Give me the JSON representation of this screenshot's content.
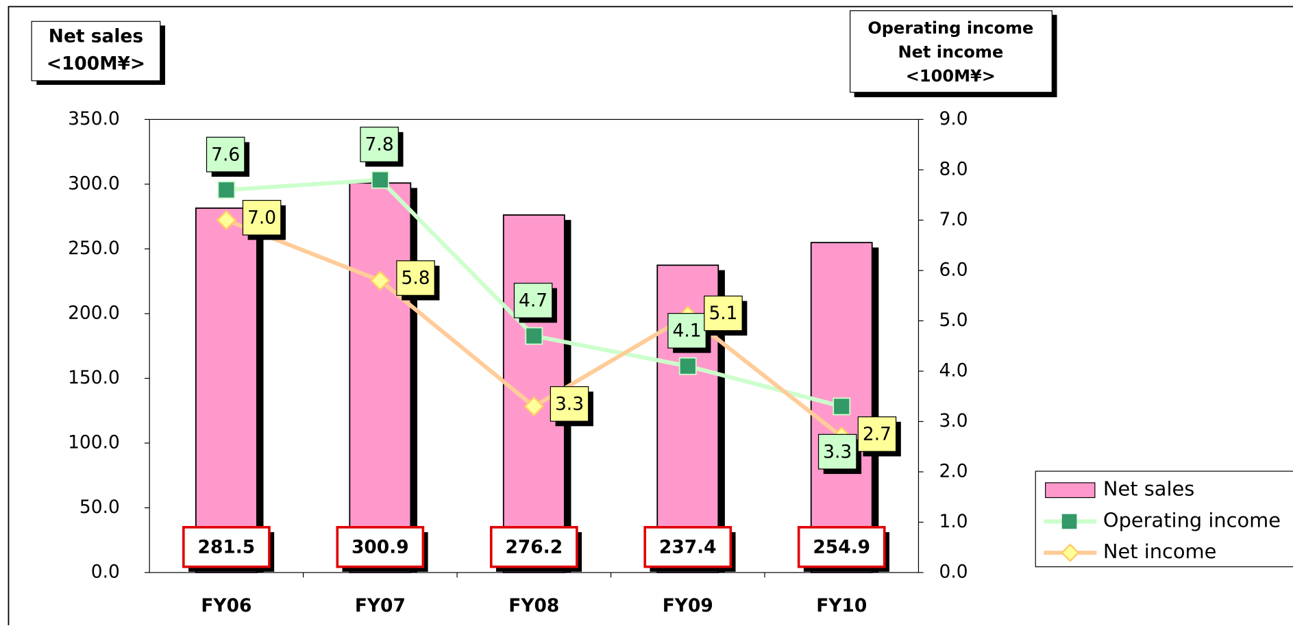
{
  "chart_data": {
    "type": "bar-line",
    "y_axis_title": [
      "Net sales",
      "<100M¥>"
    ],
    "y2_axis_title": [
      "Operating income",
      "Net income",
      "<100M¥>"
    ],
    "categories": [
      "FY06",
      "FY07",
      "FY08",
      "FY09",
      "FY10"
    ],
    "series": [
      {
        "name": "Net sales",
        "type": "bar",
        "color": "#ff99cc",
        "values": [
          281.5,
          300.9,
          276.2,
          237.4,
          254.9
        ]
      },
      {
        "name": "Operating income",
        "type": "line",
        "axis": "y2",
        "color": "#ccffcc",
        "marker_color": "#339966",
        "values": [
          7.6,
          7.8,
          4.7,
          4.1,
          3.3
        ]
      },
      {
        "name": "Net income",
        "type": "line",
        "axis": "y2",
        "color": "#ffcc99",
        "marker_color": "#ffff99",
        "values": [
          7.0,
          5.8,
          3.3,
          5.1,
          2.7
        ],
        "value_labels": [
          "7.0",
          "5.8",
          "3.3",
          "5.1",
          "2.7"
        ]
      }
    ],
    "ylim": [
      0,
      350
    ],
    "yticks": [
      {
        "value": 0,
        "label": "0.0"
      },
      {
        "value": 50,
        "label": "50.0"
      },
      {
        "value": 100,
        "label": "100.0"
      },
      {
        "value": 150,
        "label": "150.0"
      },
      {
        "value": 200,
        "label": "200.0"
      },
      {
        "value": 250,
        "label": "250.0"
      },
      {
        "value": 300,
        "label": "300.0"
      },
      {
        "value": 350,
        "label": "350.0"
      }
    ],
    "y2lim": [
      0,
      9
    ],
    "y2ticks": [
      {
        "value": 0,
        "label": "0.0"
      },
      {
        "value": 1,
        "label": "1.0"
      },
      {
        "value": 2,
        "label": "2.0"
      },
      {
        "value": 3,
        "label": "3.0"
      },
      {
        "value": 4,
        "label": "4.0"
      },
      {
        "value": 5,
        "label": "5.0"
      },
      {
        "value": 6,
        "label": "6.0"
      },
      {
        "value": 7,
        "label": "7.0"
      },
      {
        "value": 8,
        "label": "8.0"
      },
      {
        "value": 9,
        "label": "9.0"
      }
    ],
    "legend": "right"
  }
}
